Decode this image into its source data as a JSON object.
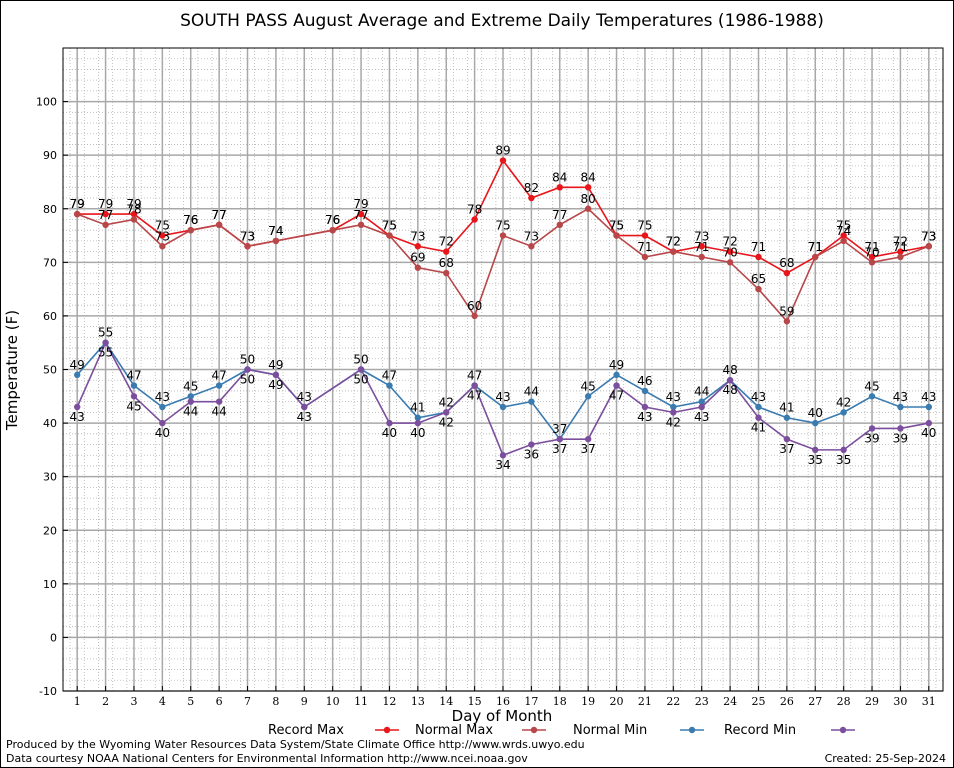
{
  "chart_data": {
    "type": "line",
    "title": "SOUTH PASS August Average and Extreme Daily Temperatures (1986-1988)",
    "xlabel": "Day of Month",
    "ylabel": "Temperature (F)",
    "x": [
      1,
      2,
      3,
      4,
      5,
      6,
      7,
      8,
      9,
      10,
      11,
      12,
      13,
      14,
      15,
      16,
      17,
      18,
      19,
      20,
      21,
      22,
      23,
      24,
      25,
      26,
      27,
      28,
      29,
      30,
      31
    ],
    "xlim": [
      0.5,
      31.5
    ],
    "ylim": [
      -10,
      110
    ],
    "yticks": [
      -10,
      0,
      10,
      20,
      30,
      40,
      50,
      60,
      70,
      80,
      90,
      100
    ],
    "grid": true,
    "legend_position": "bottom",
    "series": [
      {
        "name": "Record Max",
        "color": "#e8161b",
        "labels": "above",
        "values": [
          79,
          79,
          79,
          75,
          76,
          77,
          73,
          74,
          null,
          76,
          79,
          75,
          73,
          72,
          78,
          89,
          82,
          84,
          84,
          75,
          75,
          72,
          73,
          72,
          71,
          68,
          71,
          75,
          71,
          72,
          73
        ]
      },
      {
        "name": "Normal Max",
        "color": "#b8474a",
        "labels": "above",
        "values": [
          79,
          77,
          78,
          73,
          76,
          77,
          73,
          74,
          null,
          76,
          77,
          75,
          69,
          68,
          60,
          75,
          73,
          77,
          80,
          75,
          71,
          72,
          71,
          70,
          65,
          59,
          71,
          74,
          70,
          71,
          73
        ]
      },
      {
        "name": "Normal Min",
        "color": "#3a7bb0",
        "labels": "above",
        "values": [
          49,
          55,
          47,
          43,
          45,
          47,
          50,
          49,
          43,
          null,
          50,
          47,
          41,
          42,
          47,
          43,
          44,
          37,
          45,
          49,
          46,
          43,
          44,
          48,
          43,
          41,
          40,
          42,
          45,
          43,
          43
        ]
      },
      {
        "name": "Record Min",
        "color": "#7b4f9d",
        "labels": "below",
        "values": [
          43,
          55,
          45,
          40,
          44,
          44,
          50,
          49,
          43,
          null,
          50,
          40,
          40,
          42,
          47,
          34,
          36,
          37,
          37,
          47,
          43,
          42,
          43,
          48,
          41,
          37,
          35,
          35,
          39,
          39,
          40
        ]
      }
    ]
  },
  "footer": {
    "credit_line1": "Produced by the Wyoming Water Resources Data System/State Climate Office http://www.wrds.uwyo.edu",
    "credit_line2": "Data courtesy NOAA National Centers for Environmental Information http://www.ncei.noaa.gov",
    "created": "Created:  25-Sep-2024"
  }
}
